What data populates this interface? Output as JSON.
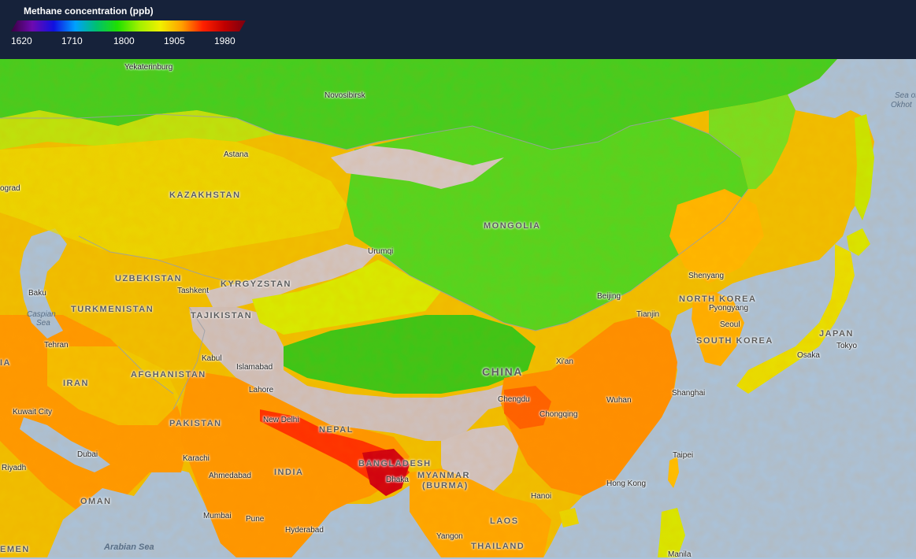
{
  "legend": {
    "title": "Methane concentration (ppb)",
    "ticks": [
      "1620",
      "1710",
      "1800",
      "1905",
      "1980"
    ],
    "gradient_colors": [
      "#3a0040",
      "#6d0ab0",
      "#1010e0",
      "#00a0ff",
      "#00c070",
      "#20e000",
      "#a0f000",
      "#f0f000",
      "#ffa000",
      "#ff2000",
      "#c00000",
      "#7a0010"
    ]
  },
  "colors": {
    "ocean": "#a9c3dc",
    "highland": "#cfc4c4",
    "low_methane": "#30d000",
    "mid_methane": "#c0f000",
    "high_methane": "#ff8a00",
    "very_high_methane": "#e01010",
    "header": "#16223a"
  },
  "cities": {
    "yekaterinburg": "Yekaterinburg",
    "novosibirsk": "Novosibirsk",
    "astana": "Astana",
    "volgograd": "ograd",
    "urumqi": "Urumqi",
    "baku": "Baku",
    "tashkent": "Tashkent",
    "shenyang": "Shenyang",
    "beijing": "Beijing",
    "pyongyang": "Pyongyang",
    "tianjin": "Tianjin",
    "seoul": "Seoul",
    "tehran": "Tehran",
    "kabul": "Kabul",
    "islamabad": "Islamabad",
    "tokyo": "Tokyo",
    "osaka": "Osaka",
    "xian": "Xi'an",
    "lahore": "Lahore",
    "shanghai": "Shanghai",
    "kuwait": "Kuwait City",
    "chengdu": "Chengdu",
    "wuhan": "Wuhan",
    "chongqing": "Chongqing",
    "new_delhi": "New Delhi",
    "dubai": "Dubai",
    "karachi": "Karachi",
    "riyadh": "Riyadh",
    "taipei": "Taipei",
    "dhaka": "Dhaka",
    "ahmedabad": "Ahmedabad",
    "hong_kong": "Hong Kong",
    "hanoi": "Hanoi",
    "mumbai": "Mumbai",
    "pune": "Pune",
    "hyderabad": "Hyderabad",
    "yangon": "Yangon",
    "manila": "Manila"
  },
  "countries": {
    "kazakhstan": "KAZAKHSTAN",
    "mongolia": "MONGOLIA",
    "uzbekistan": "UZBEKISTAN",
    "kyrgyzstan": "KYRGYZSTAN",
    "turkmenistan": "TURKMENISTAN",
    "tajikistan": "TAJIKISTAN",
    "north_korea": "NORTH KOREA",
    "south_korea": "SOUTH KOREA",
    "japan": "JAPAN",
    "china": "CHINA",
    "afghanistan": "AFGHANISTAN",
    "iran": "IRAN",
    "pakistan": "PAKISTAN",
    "nepal": "NEPAL",
    "india": "INDIA",
    "bangladesh": "BANGLADESH",
    "myanmar": "MYANMAR",
    "burma": "(BURMA)",
    "laos": "LAOS",
    "oman": "OMAN",
    "thailand": "THAILAND",
    "yemen": "EMEN",
    "iraq": "IA"
  },
  "seas": {
    "caspian1": "Caspian",
    "caspian2": "Sea",
    "okhotsk1": "Sea of",
    "okhotsk2": "Okhot",
    "arabian": "Arabian Sea"
  }
}
